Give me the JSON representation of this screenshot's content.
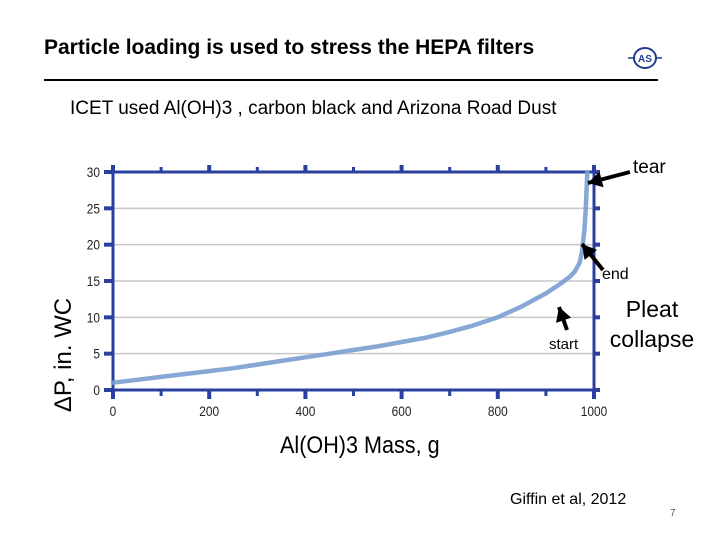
{
  "slide": {
    "title": "Particle loading is used to stress the HEPA filters",
    "subtitle": "ICET used Al(OH)3 , carbon black and Arizona Road Dust",
    "logo_text": "AS",
    "citation": "Giffin et al, 2012",
    "page_number": "7"
  },
  "annotations": {
    "tear": "tear",
    "end": "end",
    "pleat_line1": "Pleat",
    "pleat_line2": "collapse",
    "start": "start"
  },
  "chart_data": {
    "type": "line",
    "title": "",
    "xlabel": "Al(OH)3  Mass, g",
    "ylabel": "ΔP, in. WC",
    "xlim": [
      0,
      1000
    ],
    "ylim": [
      0,
      30
    ],
    "xticks": [
      0,
      200,
      400,
      600,
      800,
      1000
    ],
    "yticks": [
      0,
      5,
      10,
      15,
      20,
      25,
      30
    ],
    "grid": true,
    "series": [
      {
        "color": "#7a9fd0",
        "x": [
          0,
          50,
          100,
          150,
          200,
          250,
          300,
          350,
          400,
          450,
          500,
          550,
          600,
          650,
          700,
          750,
          800,
          850,
          900,
          930,
          950,
          960,
          970,
          975,
          980,
          983,
          986
        ],
        "y": [
          1.0,
          1.4,
          1.8,
          2.2,
          2.6,
          3.0,
          3.5,
          4.0,
          4.5,
          5.0,
          5.5,
          6.0,
          6.6,
          7.2,
          8.0,
          8.9,
          10.0,
          11.5,
          13.3,
          14.6,
          15.6,
          16.3,
          17.5,
          19.0,
          22.0,
          25.0,
          30.0
        ]
      }
    ]
  },
  "colors": {
    "axis_frame": "#2a3fa0",
    "gridline": "#c8c8c8",
    "tick_text": "#222222",
    "arrow": "#000000"
  }
}
